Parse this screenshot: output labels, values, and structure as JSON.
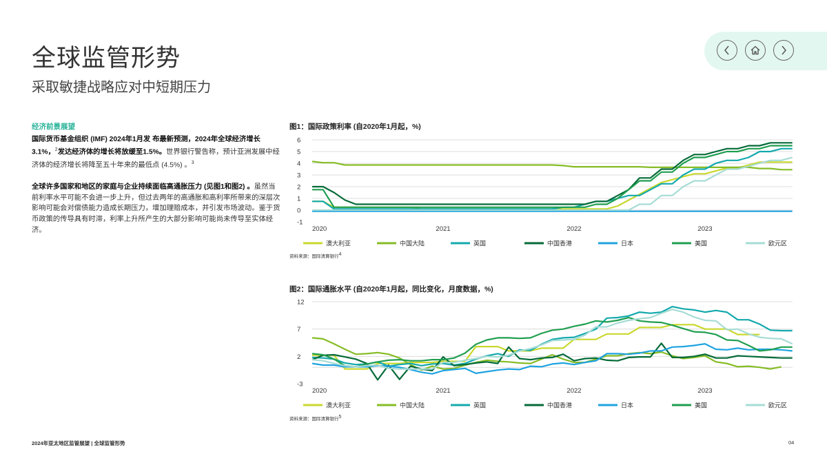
{
  "header": {
    "title": "全球监管形势",
    "subtitle": "采取敏捷战略应对中短期压力"
  },
  "nav": {
    "prev_icon": "chevron-left-circle-icon",
    "home_icon": "home-icon",
    "next_icon": "chevron-right-circle-icon"
  },
  "left": {
    "heading": "经济前景展望",
    "p1_bold": "国际货币基金组织 (IMF) 2024年1月发 布最新预测，2024年全球经济增长3.1%，",
    "p1_sup1": "2",
    "p1_bold2": "发达经济体的增长将放缓至1.5%。",
    "p1_normal": "世界银行警告称，预计亚洲发展中经济体的经济增长将降至五十年来的最低点 (4.5%) 。",
    "p1_sup2": "3",
    "p2_bold": "全球许多国家和地区的家庭与企业持续面临高通胀压力 (见图1和图2) 。",
    "p2_normal": "虽然当前利率水平可能不会进一步上升，但过去两年的高通胀和高利率所带来的深层次影响可能会对偿债能力造成长期压力，增加理赔成本，并引发市场波动。鉴于货币政策的传导具有时滞，利率上升所产生的大部分影响可能尚未传导至实体经济。"
  },
  "footer": {
    "text": "2024年亚太地区监管展望 | 全球监管形势",
    "page": "04"
  },
  "chart_data": [
    {
      "type": "line",
      "title": "图1：国际政策利率 (自2020年1月起，%)",
      "source": "资料来源：国际清算银行",
      "source_sup": "4",
      "frequency": "monthly",
      "start": "2020-01",
      "end": "2023-09",
      "x_ticks": [
        "2020",
        "2021",
        "2022",
        "2023"
      ],
      "ylim": [
        -1,
        6
      ],
      "y_ticks": [
        "6",
        "5",
        "4",
        "3",
        "2",
        "1",
        "0",
        "-1"
      ],
      "grid": true,
      "legend": "bottom",
      "series": [
        {
          "name": "澳大利亚",
          "color": "#c9d82c",
          "values": [
            0.75,
            0.75,
            0.25,
            0.25,
            0.25,
            0.25,
            0.25,
            0.25,
            0.25,
            0.25,
            0.1,
            0.1,
            0.1,
            0.1,
            0.1,
            0.1,
            0.1,
            0.1,
            0.1,
            0.1,
            0.1,
            0.1,
            0.1,
            0.1,
            0.1,
            0.1,
            0.1,
            0.1,
            0.35,
            0.85,
            1.35,
            1.85,
            2.35,
            2.6,
            2.85,
            3.1,
            3.1,
            3.35,
            3.6,
            3.6,
            3.85,
            4.1,
            4.1,
            4.1,
            4.1
          ]
        },
        {
          "name": "中国大陆",
          "color": "#86bc25",
          "values": [
            4.15,
            4.05,
            4.05,
            3.85,
            3.85,
            3.85,
            3.85,
            3.85,
            3.85,
            3.85,
            3.85,
            3.85,
            3.85,
            3.85,
            3.85,
            3.85,
            3.85,
            3.85,
            3.85,
            3.85,
            3.85,
            3.85,
            3.85,
            3.8,
            3.7,
            3.7,
            3.7,
            3.7,
            3.7,
            3.7,
            3.7,
            3.65,
            3.65,
            3.65,
            3.65,
            3.65,
            3.65,
            3.65,
            3.65,
            3.65,
            3.65,
            3.55,
            3.55,
            3.45,
            3.45
          ]
        },
        {
          "name": "英国",
          "color": "#13a9ad",
          "values": [
            0.75,
            0.75,
            0.1,
            0.1,
            0.1,
            0.1,
            0.1,
            0.1,
            0.1,
            0.1,
            0.1,
            0.1,
            0.1,
            0.1,
            0.1,
            0.1,
            0.1,
            0.1,
            0.1,
            0.1,
            0.1,
            0.1,
            0.1,
            0.25,
            0.25,
            0.5,
            0.75,
            0.75,
            1.0,
            1.25,
            1.25,
            1.75,
            2.25,
            2.25,
            3.0,
            3.5,
            3.5,
            4.0,
            4.25,
            4.25,
            4.5,
            5.0,
            5.0,
            5.25,
            5.25
          ]
        },
        {
          "name": "中国香港",
          "color": "#046a38",
          "values": [
            2.0,
            2.0,
            1.5,
            0.86,
            0.5,
            0.5,
            0.5,
            0.5,
            0.5,
            0.5,
            0.5,
            0.5,
            0.5,
            0.5,
            0.5,
            0.5,
            0.5,
            0.5,
            0.5,
            0.5,
            0.5,
            0.5,
            0.5,
            0.5,
            0.5,
            0.5,
            0.75,
            0.75,
            1.25,
            1.75,
            2.75,
            2.75,
            3.5,
            3.5,
            4.25,
            4.75,
            4.75,
            5.0,
            5.25,
            5.25,
            5.5,
            5.5,
            5.75,
            5.75,
            5.75
          ]
        },
        {
          "name": "日本",
          "color": "#1fa3e0",
          "values": [
            -0.1,
            -0.1,
            -0.1,
            -0.1,
            -0.1,
            -0.1,
            -0.1,
            -0.1,
            -0.1,
            -0.1,
            -0.1,
            -0.1,
            -0.1,
            -0.1,
            -0.1,
            -0.1,
            -0.1,
            -0.1,
            -0.1,
            -0.1,
            -0.1,
            -0.1,
            -0.1,
            -0.1,
            -0.1,
            -0.1,
            -0.1,
            -0.1,
            -0.1,
            -0.1,
            -0.1,
            -0.1,
            -0.1,
            -0.1,
            -0.1,
            -0.1,
            -0.1,
            -0.1,
            -0.1,
            -0.1,
            -0.1,
            -0.1,
            -0.1,
            -0.1,
            -0.1
          ]
        },
        {
          "name": "美国",
          "color": "#1f9e4f",
          "values": [
            1.75,
            1.75,
            0.25,
            0.25,
            0.25,
            0.25,
            0.25,
            0.25,
            0.25,
            0.25,
            0.25,
            0.25,
            0.25,
            0.25,
            0.25,
            0.25,
            0.25,
            0.25,
            0.25,
            0.25,
            0.25,
            0.25,
            0.25,
            0.25,
            0.25,
            0.25,
            0.5,
            0.5,
            1.0,
            1.75,
            2.5,
            2.5,
            3.25,
            3.25,
            4.0,
            4.5,
            4.5,
            4.75,
            5.0,
            5.0,
            5.25,
            5.25,
            5.5,
            5.5,
            5.5
          ]
        },
        {
          "name": "欧元区",
          "color": "#a6dcd5",
          "values": [
            0,
            0,
            0,
            0,
            0,
            0,
            0,
            0,
            0,
            0,
            0,
            0,
            0,
            0,
            0,
            0,
            0,
            0,
            0,
            0,
            0,
            0,
            0,
            0,
            0,
            0,
            0,
            0,
            0,
            0,
            0.5,
            0.5,
            1.25,
            1.25,
            2.0,
            2.5,
            2.5,
            3.0,
            3.5,
            3.5,
            3.75,
            4.0,
            4.25,
            4.25,
            4.5
          ]
        }
      ]
    },
    {
      "type": "line",
      "title": "图2：国际通胀水平 (自2020年1月起，同比变化，月度数据，%)",
      "source": "资料来源：国际清算银行",
      "source_sup": "5",
      "frequency": "monthly",
      "start": "2020-01",
      "end": "2023-09",
      "x_ticks": [
        "2020",
        "2021",
        "2022",
        "2023"
      ],
      "ylim": [
        -3,
        12
      ],
      "y_ticks": [
        "12",
        "7",
        "2",
        "-3"
      ],
      "grid": true,
      "legend": "bottom",
      "series": [
        {
          "name": "澳大利亚",
          "color": "#c9d82c",
          "values": [
            2.2,
            2.2,
            2.2,
            -0.3,
            -0.3,
            -0.3,
            0.7,
            0.7,
            0.7,
            0.9,
            0.9,
            0.9,
            1.1,
            1.1,
            1.1,
            3.8,
            3.8,
            3.8,
            3.0,
            3.0,
            3.0,
            3.5,
            3.5,
            3.5,
            5.1,
            5.1,
            5.1,
            6.1,
            6.1,
            6.1,
            7.3,
            7.3,
            7.3,
            7.8,
            7.8,
            7.8,
            7.0,
            7.0,
            7.0,
            6.0,
            6.0,
            6.0,
            null,
            null,
            null
          ]
        },
        {
          "name": "中国大陆",
          "color": "#86bc25",
          "values": [
            5.4,
            5.2,
            4.3,
            3.3,
            2.4,
            2.5,
            2.7,
            2.4,
            1.7,
            0.5,
            -0.5,
            0.2,
            -0.3,
            -0.2,
            0.4,
            0.9,
            1.3,
            1.1,
            1.0,
            0.8,
            0.7,
            1.5,
            2.3,
            1.5,
            0.9,
            0.9,
            1.5,
            2.1,
            2.1,
            2.5,
            2.7,
            2.5,
            2.8,
            2.1,
            1.6,
            1.8,
            2.1,
            1.0,
            0.7,
            0.1,
            0.2,
            0.0,
            -0.3,
            0.1,
            null
          ]
        },
        {
          "name": "英国",
          "color": "#13a9ad",
          "values": [
            1.8,
            1.7,
            1.5,
            0.8,
            0.5,
            0.6,
            1.0,
            0.2,
            0.5,
            0.7,
            0.3,
            0.6,
            0.7,
            0.4,
            0.7,
            1.5,
            2.1,
            2.5,
            2.0,
            3.2,
            3.1,
            4.2,
            5.1,
            5.4,
            5.5,
            6.2,
            7.0,
            9.0,
            9.1,
            9.4,
            10.1,
            9.9,
            10.1,
            11.1,
            10.7,
            10.5,
            10.1,
            10.4,
            10.1,
            8.7,
            8.7,
            7.9,
            6.8,
            6.7,
            6.7
          ]
        },
        {
          "name": "中国香港",
          "color": "#046a38",
          "values": [
            1.4,
            2.2,
            2.3,
            1.9,
            1.5,
            0.7,
            -2.3,
            0.4,
            -2.2,
            0.2,
            -0.3,
            -0.6,
            1.9,
            0.3,
            0.5,
            0.8,
            1.0,
            0.7,
            3.7,
            1.6,
            1.4,
            1.7,
            1.8,
            2.4,
            1.2,
            1.6,
            1.7,
            1.3,
            1.2,
            1.8,
            1.9,
            1.9,
            4.4,
            1.8,
            1.8,
            2.0,
            2.4,
            1.7,
            1.7,
            2.1,
            2.0,
            1.9,
            1.8,
            1.7,
            1.7
          ]
        },
        {
          "name": "日本",
          "color": "#1fa3e0",
          "values": [
            0.7,
            0.4,
            0.4,
            0.1,
            0.1,
            0.1,
            0.3,
            0.2,
            0.0,
            -0.4,
            -0.9,
            -1.2,
            -0.6,
            -0.4,
            -0.2,
            -1.1,
            -0.8,
            -0.5,
            -0.3,
            -0.4,
            0.2,
            0.1,
            0.6,
            0.8,
            0.5,
            0.9,
            1.2,
            2.5,
            2.5,
            2.4,
            2.6,
            3.0,
            3.0,
            3.7,
            3.8,
            4.0,
            4.3,
            3.3,
            3.2,
            3.5,
            3.2,
            3.3,
            3.3,
            3.2,
            3.0
          ]
        },
        {
          "name": "美国",
          "color": "#1f9e4f",
          "values": [
            2.5,
            2.3,
            1.5,
            0.3,
            0.1,
            0.6,
            1.0,
            1.3,
            1.4,
            1.2,
            1.2,
            1.4,
            1.4,
            1.7,
            2.6,
            4.2,
            5.0,
            5.4,
            5.4,
            5.3,
            5.4,
            6.2,
            6.8,
            7.0,
            7.5,
            7.9,
            8.5,
            8.3,
            8.6,
            9.1,
            8.5,
            8.3,
            8.2,
            7.7,
            7.1,
            6.5,
            6.4,
            6.0,
            5.0,
            4.9,
            4.0,
            3.0,
            3.2,
            3.7,
            3.7
          ]
        },
        {
          "name": "欧元区",
          "color": "#a6dcd5",
          "values": [
            1.4,
            1.2,
            0.7,
            0.3,
            0.1,
            0.3,
            0.4,
            -0.2,
            -0.3,
            -0.3,
            -0.3,
            -0.3,
            0.9,
            0.9,
            1.3,
            1.6,
            2.0,
            1.9,
            2.2,
            3.0,
            3.4,
            4.1,
            4.9,
            5.0,
            5.1,
            5.9,
            7.4,
            7.4,
            8.1,
            8.6,
            8.9,
            9.1,
            9.9,
            10.6,
            10.1,
            9.2,
            8.6,
            8.5,
            6.9,
            7.0,
            6.1,
            5.5,
            5.3,
            5.2,
            4.3
          ]
        }
      ]
    }
  ]
}
